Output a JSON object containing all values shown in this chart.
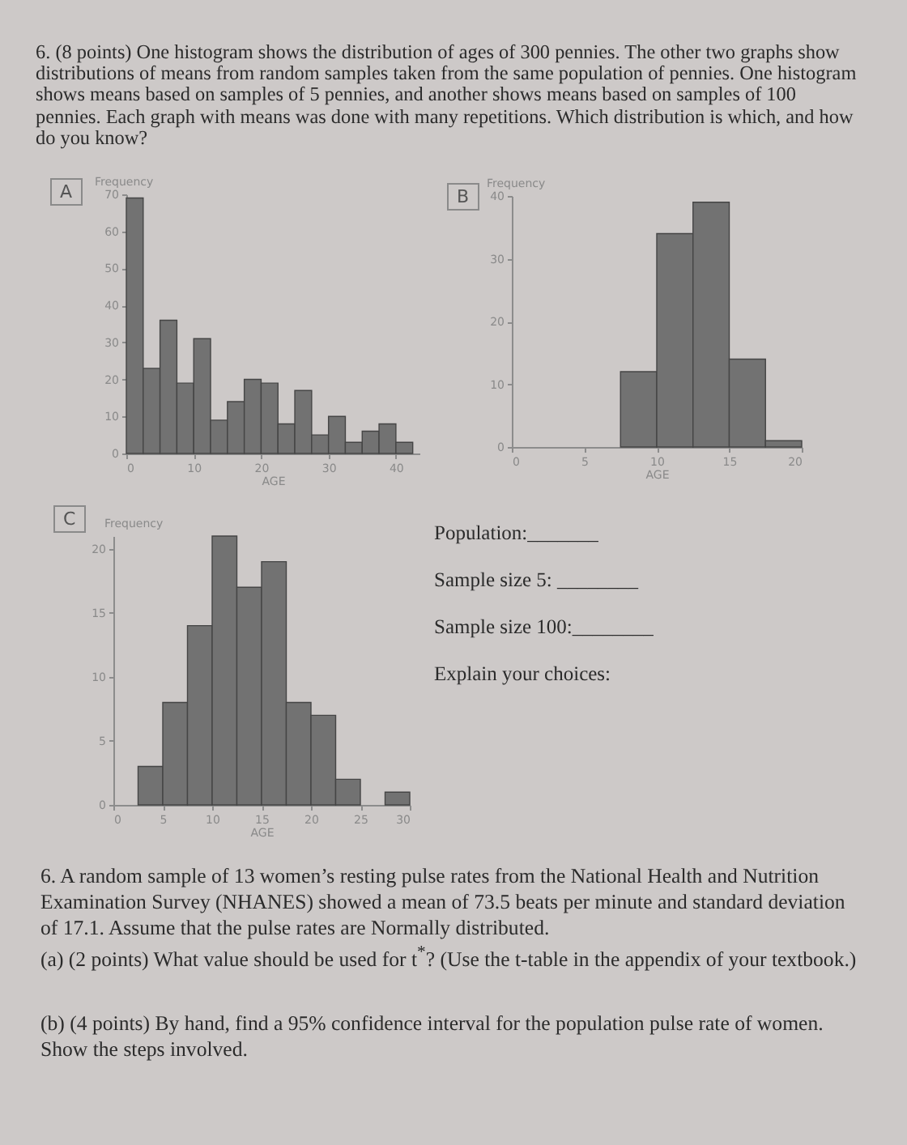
{
  "chart_data": [
    {
      "type": "other",
      "annotations": [
        "6. (8 points) One histogram shows the distribution of ages of 300 pennies. The other two graphs show distributions of means from random samples taken from the same population of pennies. One histogram shows means based on samples of 5 pennies, and another shows means based on samples of 100 pennies. Each graph with means was done with many repetitions. Which distribution is which, and how do you know?"
      ]
    },
    {
      "type": "histogram",
      "title": "A",
      "xlabel": "AGE",
      "ylabel": "Frequency",
      "color": "#727272",
      "bins": [
        0,
        2.5,
        5,
        7.5,
        10,
        12.5,
        15,
        17.5,
        20,
        22.5,
        25,
        27.5,
        30,
        32.5,
        35,
        37.5,
        40,
        42.5
      ],
      "values": [
        69,
        23,
        36,
        19,
        31,
        9,
        14,
        20,
        19,
        8,
        17,
        5,
        10,
        3,
        6,
        8,
        3
      ],
      "xlim": [
        0,
        43.5
      ],
      "ylim": [
        0,
        70
      ],
      "xticks": [
        0,
        10,
        20,
        30,
        40
      ],
      "yticks": [
        0,
        10,
        20,
        30,
        40,
        50,
        60,
        70
      ]
    },
    {
      "type": "histogram",
      "title": "B",
      "xlabel": "AGE",
      "ylabel": "Frequency",
      "color": "#727272",
      "bins": [
        7.5,
        10,
        12.5,
        15,
        17.5,
        20
      ],
      "values": [
        12,
        34,
        39,
        14,
        1
      ],
      "xlim": [
        0,
        20
      ],
      "ylim": [
        0,
        40
      ],
      "xticks": [
        0,
        5,
        10,
        15,
        20
      ],
      "yticks": [
        0,
        10,
        20,
        30,
        40
      ]
    },
    {
      "type": "histogram",
      "title": "C",
      "xlabel": "AGE",
      "ylabel": "Frequency",
      "color": "#727272",
      "bins": [
        2.5,
        5,
        7.5,
        10,
        12.5,
        15,
        17.5,
        20,
        22.5,
        25,
        27.5,
        30
      ],
      "values": [
        3,
        8,
        14,
        21,
        17,
        19,
        8,
        7,
        2,
        0,
        1
      ],
      "xlim": [
        0,
        30
      ],
      "ylim": [
        0,
        21
      ],
      "xticks": [
        0,
        5,
        10,
        15,
        20,
        25,
        30
      ],
      "yticks": [
        0,
        5,
        10,
        15,
        20
      ]
    },
    {
      "type": "other",
      "annotations": [
        "Population:_______",
        "Sample size 5: ________",
        "Sample size 100:________",
        "Explain your choices:"
      ]
    },
    {
      "type": "other",
      "annotations": [
        "6. A random sample of 13 women’s resting pulse rates from the National Health and Nutrition Examination Survey (NHANES) showed a mean of 73.5 beats per minute and standard deviation of 17.1. Assume that the pulse rates are Normally distributed.",
        "(a) (2 points) What value should be used for t$^{*}$? (Use the t-table in the appendix of your textbook.)",
        "(b) (4 points) By hand, find a 95% confidence interval for the population pulse rate of women. Show the steps involved."
      ]
    }
  ]
}
